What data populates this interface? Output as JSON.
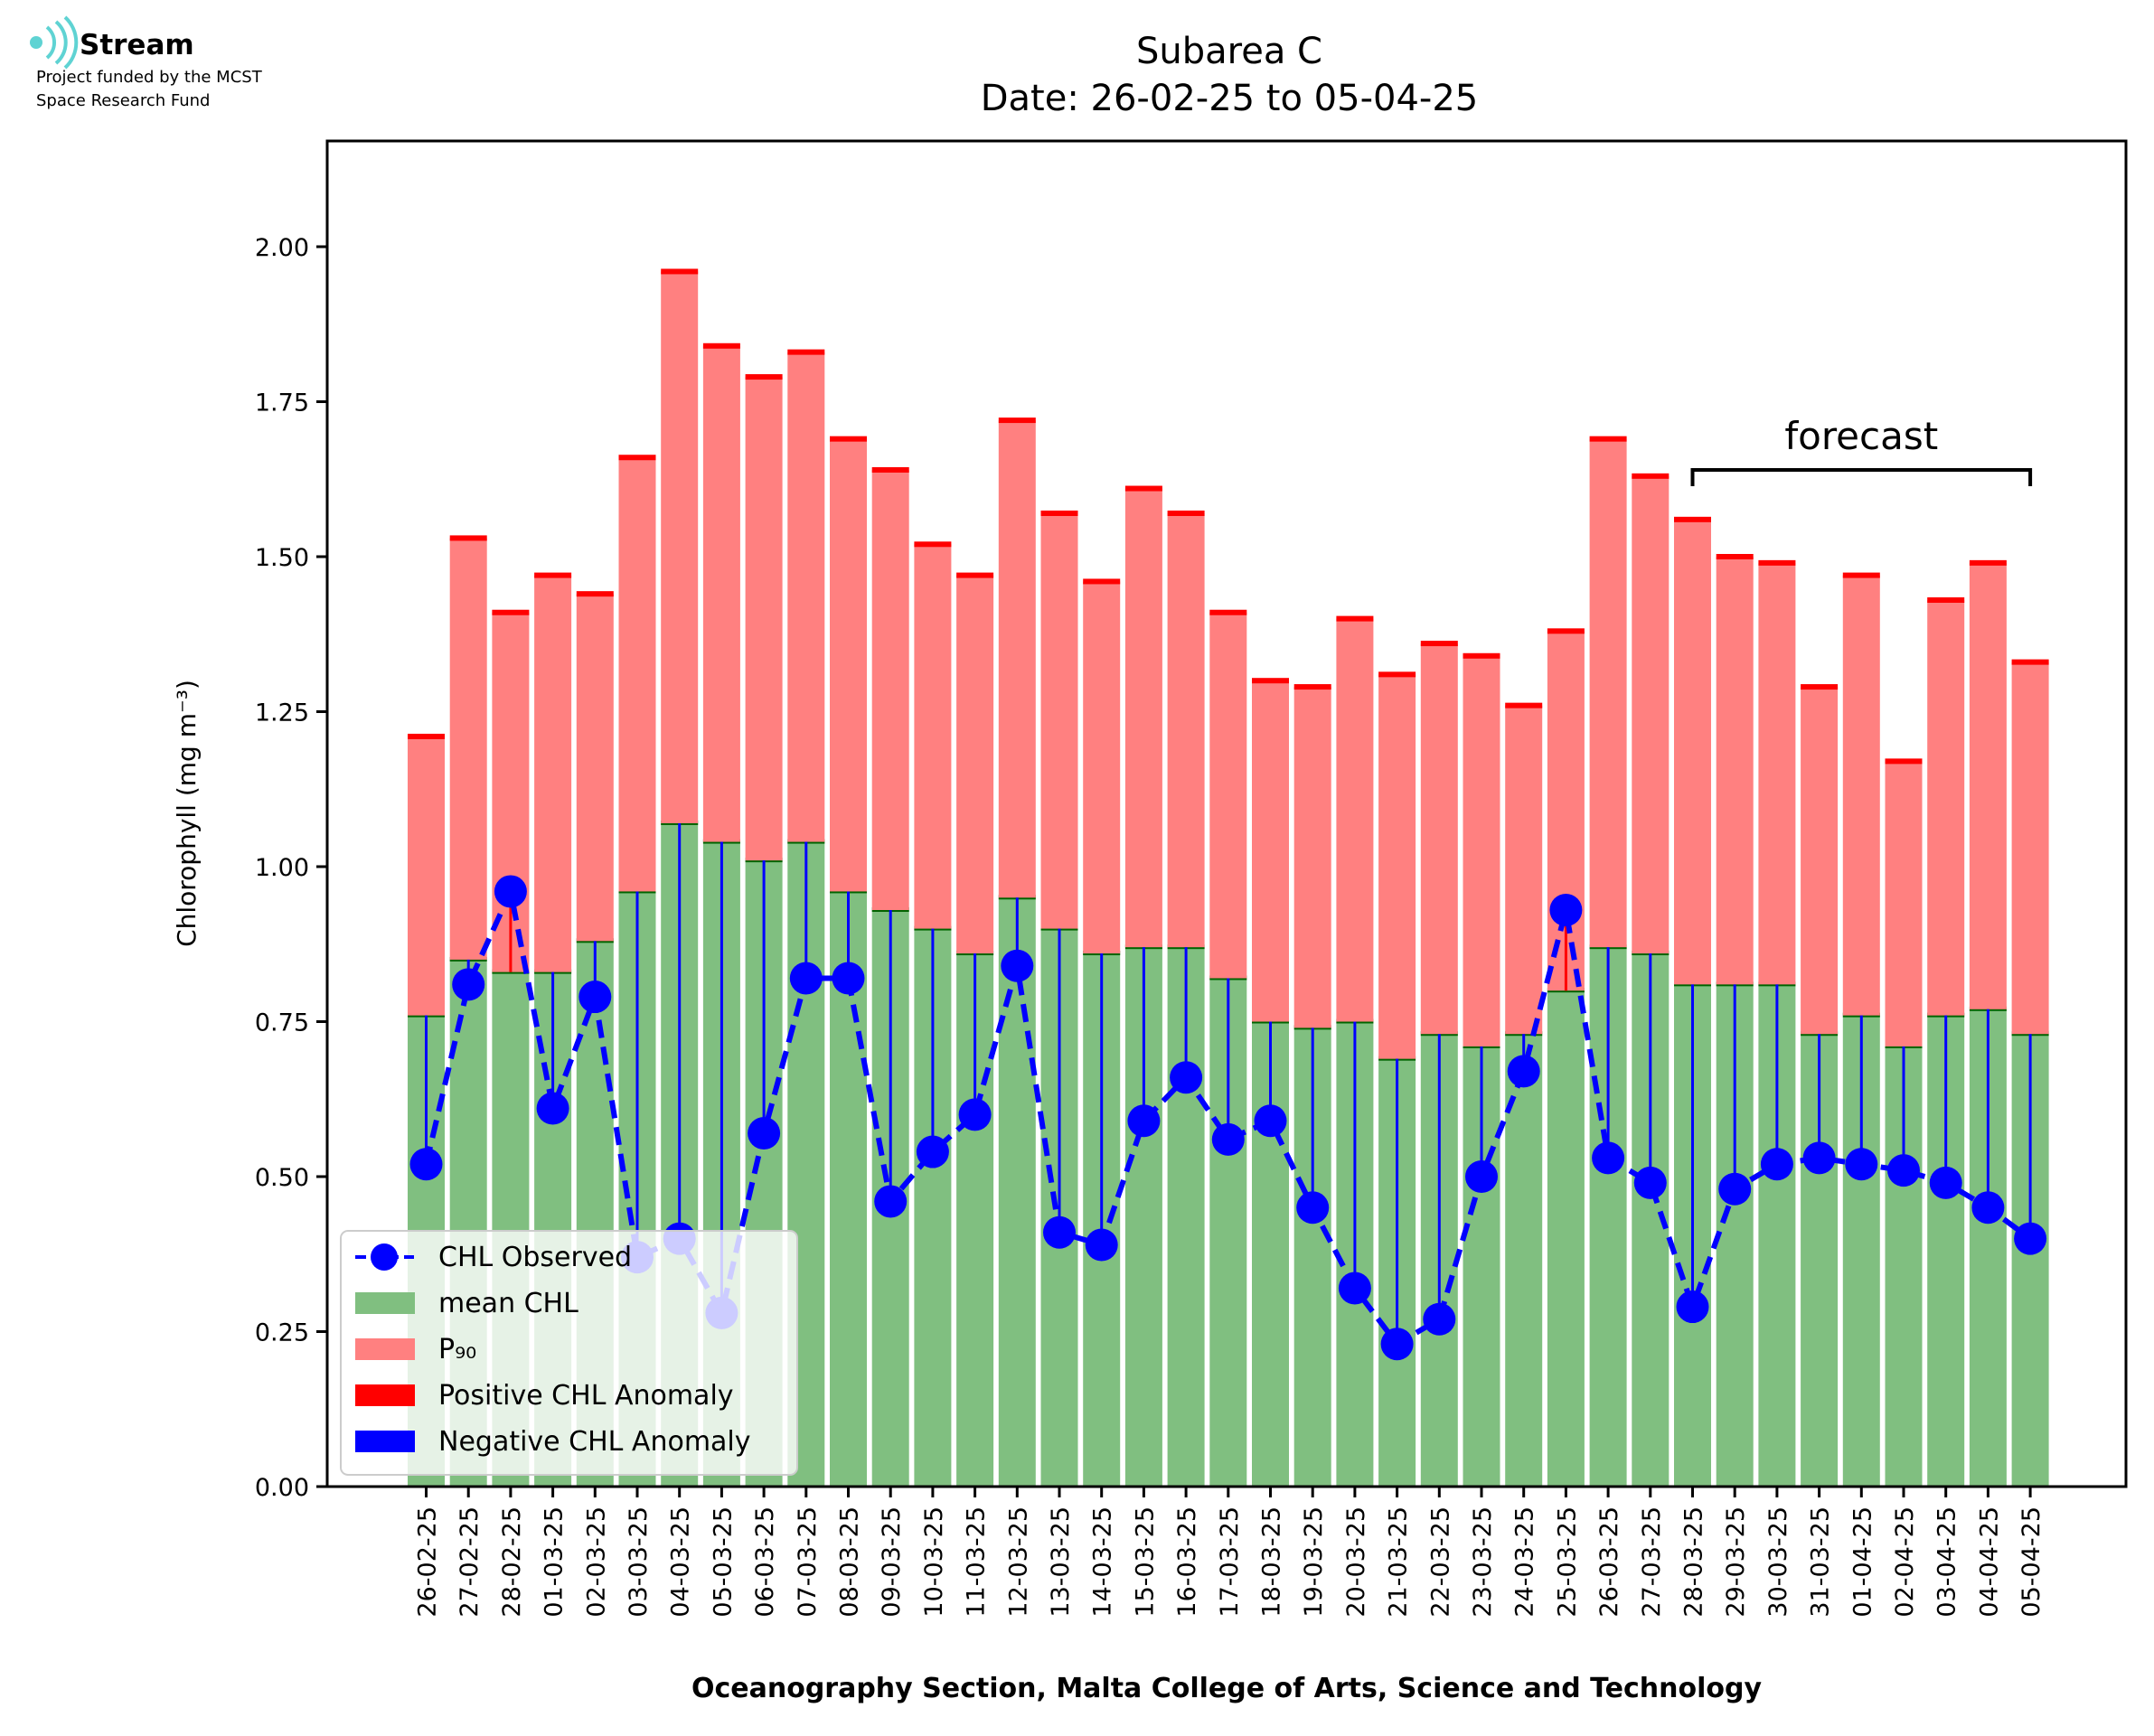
{
  "branding": {
    "logo_text": "Stream",
    "funding_line1": "Project funded by the MCST",
    "funding_line2": "Space Research Fund"
  },
  "colors": {
    "mean": "#80bf80",
    "mean_top": "#006400",
    "p90": "#ff8080",
    "p90_top": "#ff0000",
    "positive_anomaly": "#ff0000",
    "negative_anomaly": "#0000ff",
    "observed": "#0000ff",
    "logo": "#5fd3d3"
  },
  "chart_data": {
    "type": "bar",
    "title": "Subarea C",
    "subtitle": "Date: 26-02-25 to 05-04-25",
    "xlabel": "Oceanography Section, Malta College of Arts, Science and Technology",
    "ylabel": "Chlorophyll (mg m⁻³)",
    "ylim": [
      0,
      2.17
    ],
    "yticks": [
      "0.00",
      "0.25",
      "0.50",
      "0.75",
      "1.00",
      "1.25",
      "1.50",
      "1.75",
      "2.00"
    ],
    "ytick_values": [
      0,
      0.25,
      0.5,
      0.75,
      1.0,
      1.25,
      1.5,
      1.75,
      2.0
    ],
    "grid": false,
    "legend_position": "bottom-left",
    "categories": [
      "26-02-25",
      "27-02-25",
      "28-02-25",
      "01-03-25",
      "02-03-25",
      "03-03-25",
      "04-03-25",
      "05-03-25",
      "06-03-25",
      "07-03-25",
      "08-03-25",
      "09-03-25",
      "10-03-25",
      "11-03-25",
      "12-03-25",
      "13-03-25",
      "14-03-25",
      "15-03-25",
      "16-03-25",
      "17-03-25",
      "18-03-25",
      "19-03-25",
      "20-03-25",
      "21-03-25",
      "22-03-25",
      "23-03-25",
      "24-03-25",
      "25-03-25",
      "26-03-25",
      "27-03-25",
      "28-03-25",
      "29-03-25",
      "30-03-25",
      "31-03-25",
      "01-04-25",
      "02-04-25",
      "03-04-25",
      "04-04-25",
      "05-04-25"
    ],
    "series": [
      {
        "name": "mean CHL",
        "kind": "bar",
        "values": [
          0.76,
          0.85,
          0.83,
          0.83,
          0.88,
          0.96,
          1.07,
          1.04,
          1.01,
          1.04,
          0.96,
          0.93,
          0.9,
          0.86,
          0.95,
          0.9,
          0.86,
          0.87,
          0.87,
          0.82,
          0.75,
          0.74,
          0.75,
          0.69,
          0.73,
          0.71,
          0.73,
          0.8,
          0.87,
          0.86,
          0.81,
          0.81,
          0.81,
          0.73,
          0.76,
          0.71,
          0.76,
          0.77,
          0.73
        ]
      },
      {
        "name": "P₉₀",
        "kind": "bar",
        "values": [
          1.21,
          1.53,
          1.41,
          1.47,
          1.44,
          1.66,
          1.96,
          1.84,
          1.79,
          1.83,
          1.69,
          1.64,
          1.52,
          1.47,
          1.72,
          1.57,
          1.46,
          1.61,
          1.57,
          1.41,
          1.3,
          1.29,
          1.4,
          1.31,
          1.36,
          1.34,
          1.26,
          1.38,
          1.69,
          1.63,
          1.56,
          1.5,
          1.49,
          1.29,
          1.47,
          1.17,
          1.43,
          1.49,
          1.33
        ]
      },
      {
        "name": "CHL Observed",
        "kind": "line",
        "values": [
          0.52,
          0.81,
          0.96,
          0.61,
          0.79,
          0.37,
          0.4,
          0.28,
          0.57,
          0.82,
          0.82,
          0.46,
          0.54,
          0.6,
          0.84,
          0.41,
          0.39,
          0.59,
          0.66,
          0.56,
          0.59,
          0.45,
          0.32,
          0.23,
          0.27,
          0.5,
          0.67,
          0.93,
          0.53,
          0.49,
          0.29,
          0.48,
          0.52,
          0.53,
          0.52,
          0.51,
          0.49,
          0.45,
          0.4
        ]
      }
    ],
    "legend": [
      "CHL Observed",
      "mean CHL",
      "P₉₀",
      "Positive CHL Anomaly",
      "Negative CHL Anomaly"
    ],
    "annotations": [
      {
        "text": "forecast",
        "from": "28-03-25",
        "to": "05-04-25"
      }
    ]
  }
}
